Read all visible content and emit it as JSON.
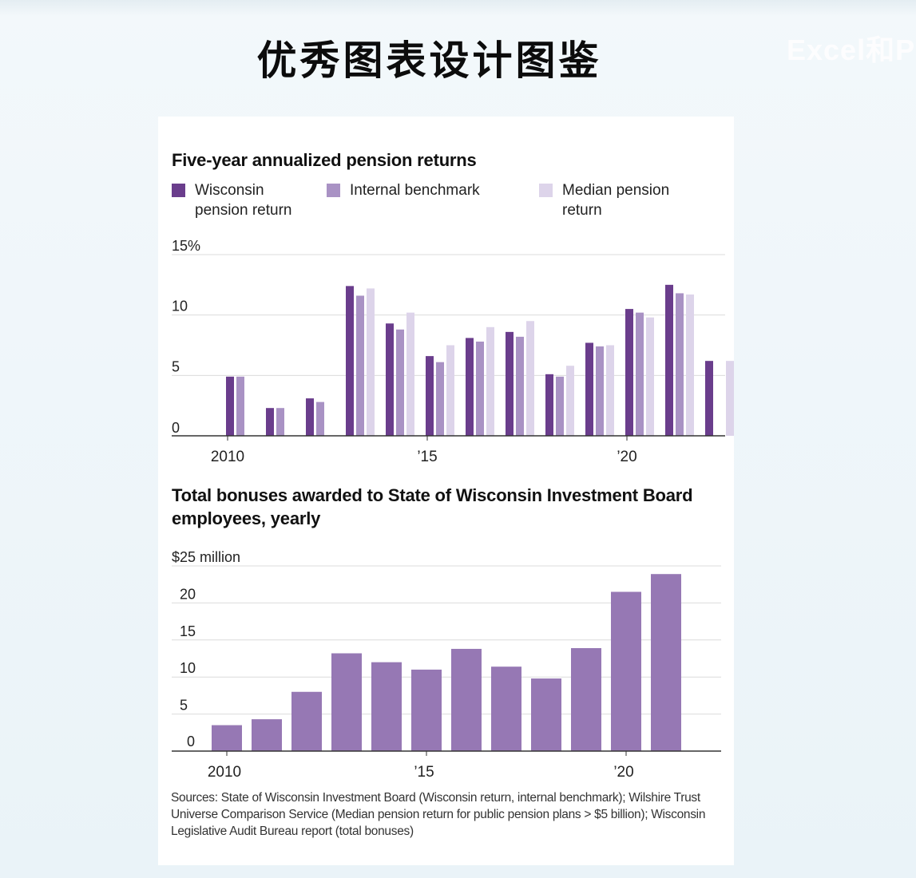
{
  "slide": {
    "title": "优秀图表设计图鉴",
    "watermark": "Excel和P"
  },
  "colors": {
    "wisconsin": "#6a3d8c",
    "internal": "#a992c4",
    "median": "#ddd4ea",
    "bonus": "#9678b4",
    "grid": "#dcdcdc",
    "axis": "#333333"
  },
  "chart_data": [
    {
      "type": "bar",
      "title": "Five-year annualized pension returns",
      "legend": {
        "position": "top"
      },
      "x": [
        2010,
        2011,
        2012,
        2013,
        2014,
        2015,
        2016,
        2017,
        2018,
        2019,
        2020,
        2021,
        2022
      ],
      "x_tick_labels": [
        "2010",
        "",
        "",
        "",
        "",
        "’15",
        "",
        "",
        "",
        "",
        "’20",
        "",
        ""
      ],
      "y_ticks": [
        "15%",
        "10",
        "5",
        "0"
      ],
      "ylim": [
        0,
        15
      ],
      "grid": true,
      "series": [
        {
          "name": "Wisconsin pension return",
          "values": [
            4.9,
            2.3,
            3.1,
            12.4,
            9.3,
            6.6,
            8.1,
            8.6,
            5.1,
            7.7,
            10.5,
            12.5,
            6.2
          ]
        },
        {
          "name": "Internal benchmark",
          "values": [
            4.9,
            2.3,
            2.8,
            11.6,
            8.8,
            6.1,
            7.8,
            8.2,
            4.9,
            7.4,
            10.2,
            11.8,
            null
          ]
        },
        {
          "name": "Median pension return",
          "values": [
            null,
            null,
            null,
            12.2,
            10.2,
            7.5,
            9.0,
            9.5,
            5.8,
            7.5,
            9.8,
            11.7,
            6.2
          ]
        }
      ]
    },
    {
      "type": "bar",
      "title": "Total bonuses awarded to State of Wisconsin Investment Board employees, yearly",
      "x": [
        2010,
        2011,
        2012,
        2013,
        2014,
        2015,
        2016,
        2017,
        2018,
        2019,
        2020,
        2021
      ],
      "x_tick_labels": [
        "2010",
        "",
        "",
        "",
        "",
        "’15",
        "",
        "",
        "",
        "",
        "’20",
        ""
      ],
      "y_ticks": [
        "$25 million",
        "20",
        "15",
        "10",
        "5",
        "0"
      ],
      "ylim": [
        0,
        25
      ],
      "grid": true,
      "series": [
        {
          "values": [
            3.5,
            4.3,
            8.0,
            13.2,
            12.0,
            11.0,
            13.8,
            11.4,
            9.8,
            13.9,
            21.5,
            23.9
          ]
        }
      ]
    }
  ],
  "sources": "Sources: State of Wisconsin Investment Board (Wisconsin return, internal benchmark); Wilshire Trust Universe Comparison Service (Median pension return for public pension plans > $5 billion); Wisconsin Legislative Audit Bureau report (total bonuses)"
}
